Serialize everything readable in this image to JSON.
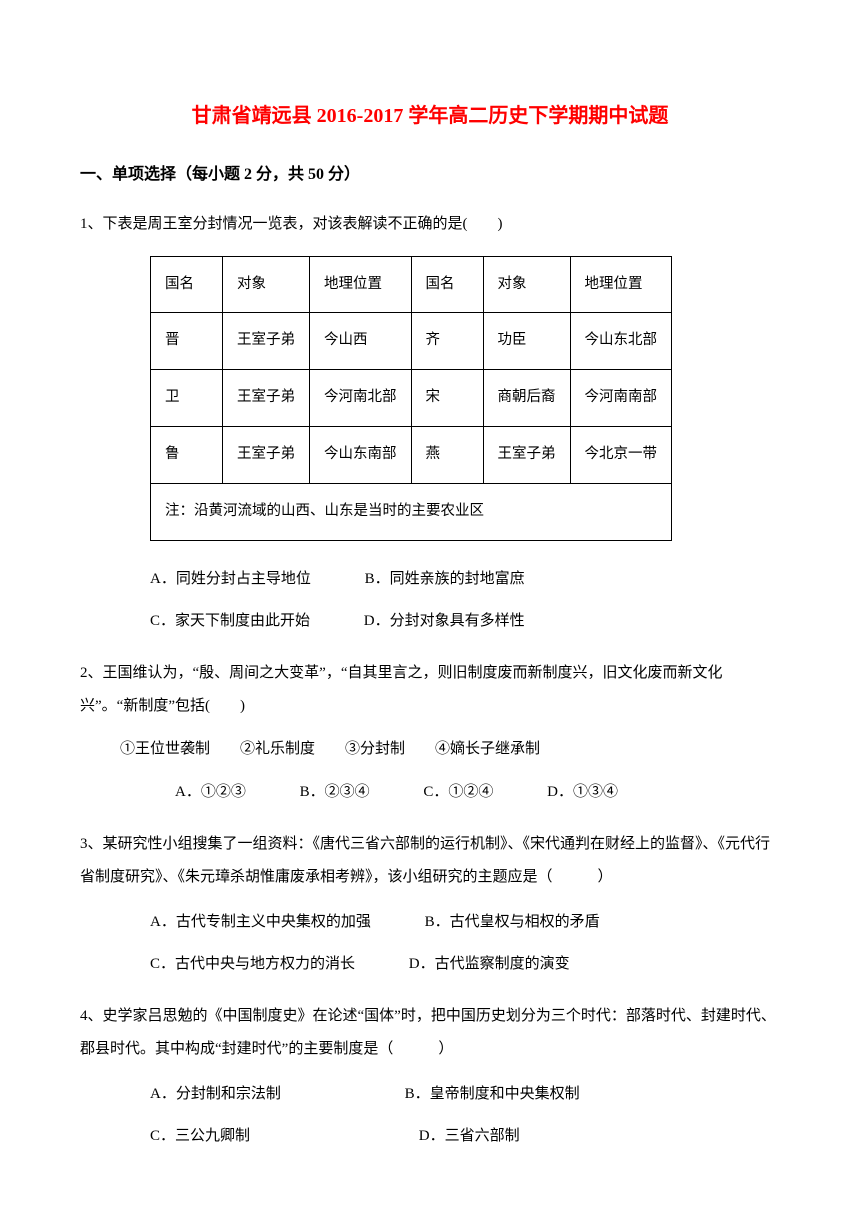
{
  "title": "甘肃省靖远县 2016-2017 学年高二历史下学期期中试题",
  "section": "一、单项选择（每小题 2 分，共 50 分）",
  "q1": {
    "text": "1、下表是周王室分封情况一览表，对该表解读不正确的是(　　)",
    "table": {
      "headers": [
        "国名",
        "对象",
        "地理位置",
        "国名",
        "对象",
        "地理位置"
      ],
      "rows": [
        [
          "晋",
          "王室子弟",
          "今山西",
          "齐",
          "功臣",
          "今山东北部"
        ],
        [
          "卫",
          "王室子弟",
          "今河南北部",
          "宋",
          "商朝后裔",
          "今河南南部"
        ],
        [
          "鲁",
          "王室子弟",
          "今山东南部",
          "燕",
          "王室子弟",
          "今北京一带"
        ]
      ],
      "note": "注：沿黄河流域的山西、山东是当时的主要农业区"
    },
    "options": {
      "a": "A．同姓分封占主导地位",
      "b": "B．同姓亲族的封地富庶",
      "c": "C．家天下制度由此开始",
      "d": "D．分封对象具有多样性"
    }
  },
  "q2": {
    "text": "2、王国维认为，“殷、周间之大变革”，“自其里言之，则旧制度废而新制度兴，旧文化废而新文化兴”。“新制度”包括(　　)",
    "subitems": "①王位世袭制　　②礼乐制度　　③分封制　　④嫡长子继承制",
    "options": {
      "a": "A．①②③",
      "b": "B．②③④",
      "c": "C．①②④",
      "d": "D．①③④"
    }
  },
  "q3": {
    "text": "3、某研究性小组搜集了一组资料：《唐代三省六部制的运行机制》、《宋代通判在财经上的监督》、《元代行省制度研究》、《朱元璋杀胡惟庸废承相考辨》，该小组研究的主题应是（　　　）",
    "options": {
      "a": "A．古代专制主义中央集权的加强",
      "b": "B．古代皇权与相权的矛盾",
      "c": "C．古代中央与地方权力的消长",
      "d": "D．古代监察制度的演变"
    }
  },
  "q4": {
    "text": "4、史学家吕思勉的《中国制度史》在论述“国体”时，把中国历史划分为三个时代：部落时代、封建时代、郡县时代。其中构成“封建时代”的主要制度是（　　　）",
    "options": {
      "a": "A．分封制和宗法制",
      "b": "B．皇帝制度和中央集权制",
      "c": "C．三公九卿制",
      "d": "D．三省六部制"
    }
  }
}
